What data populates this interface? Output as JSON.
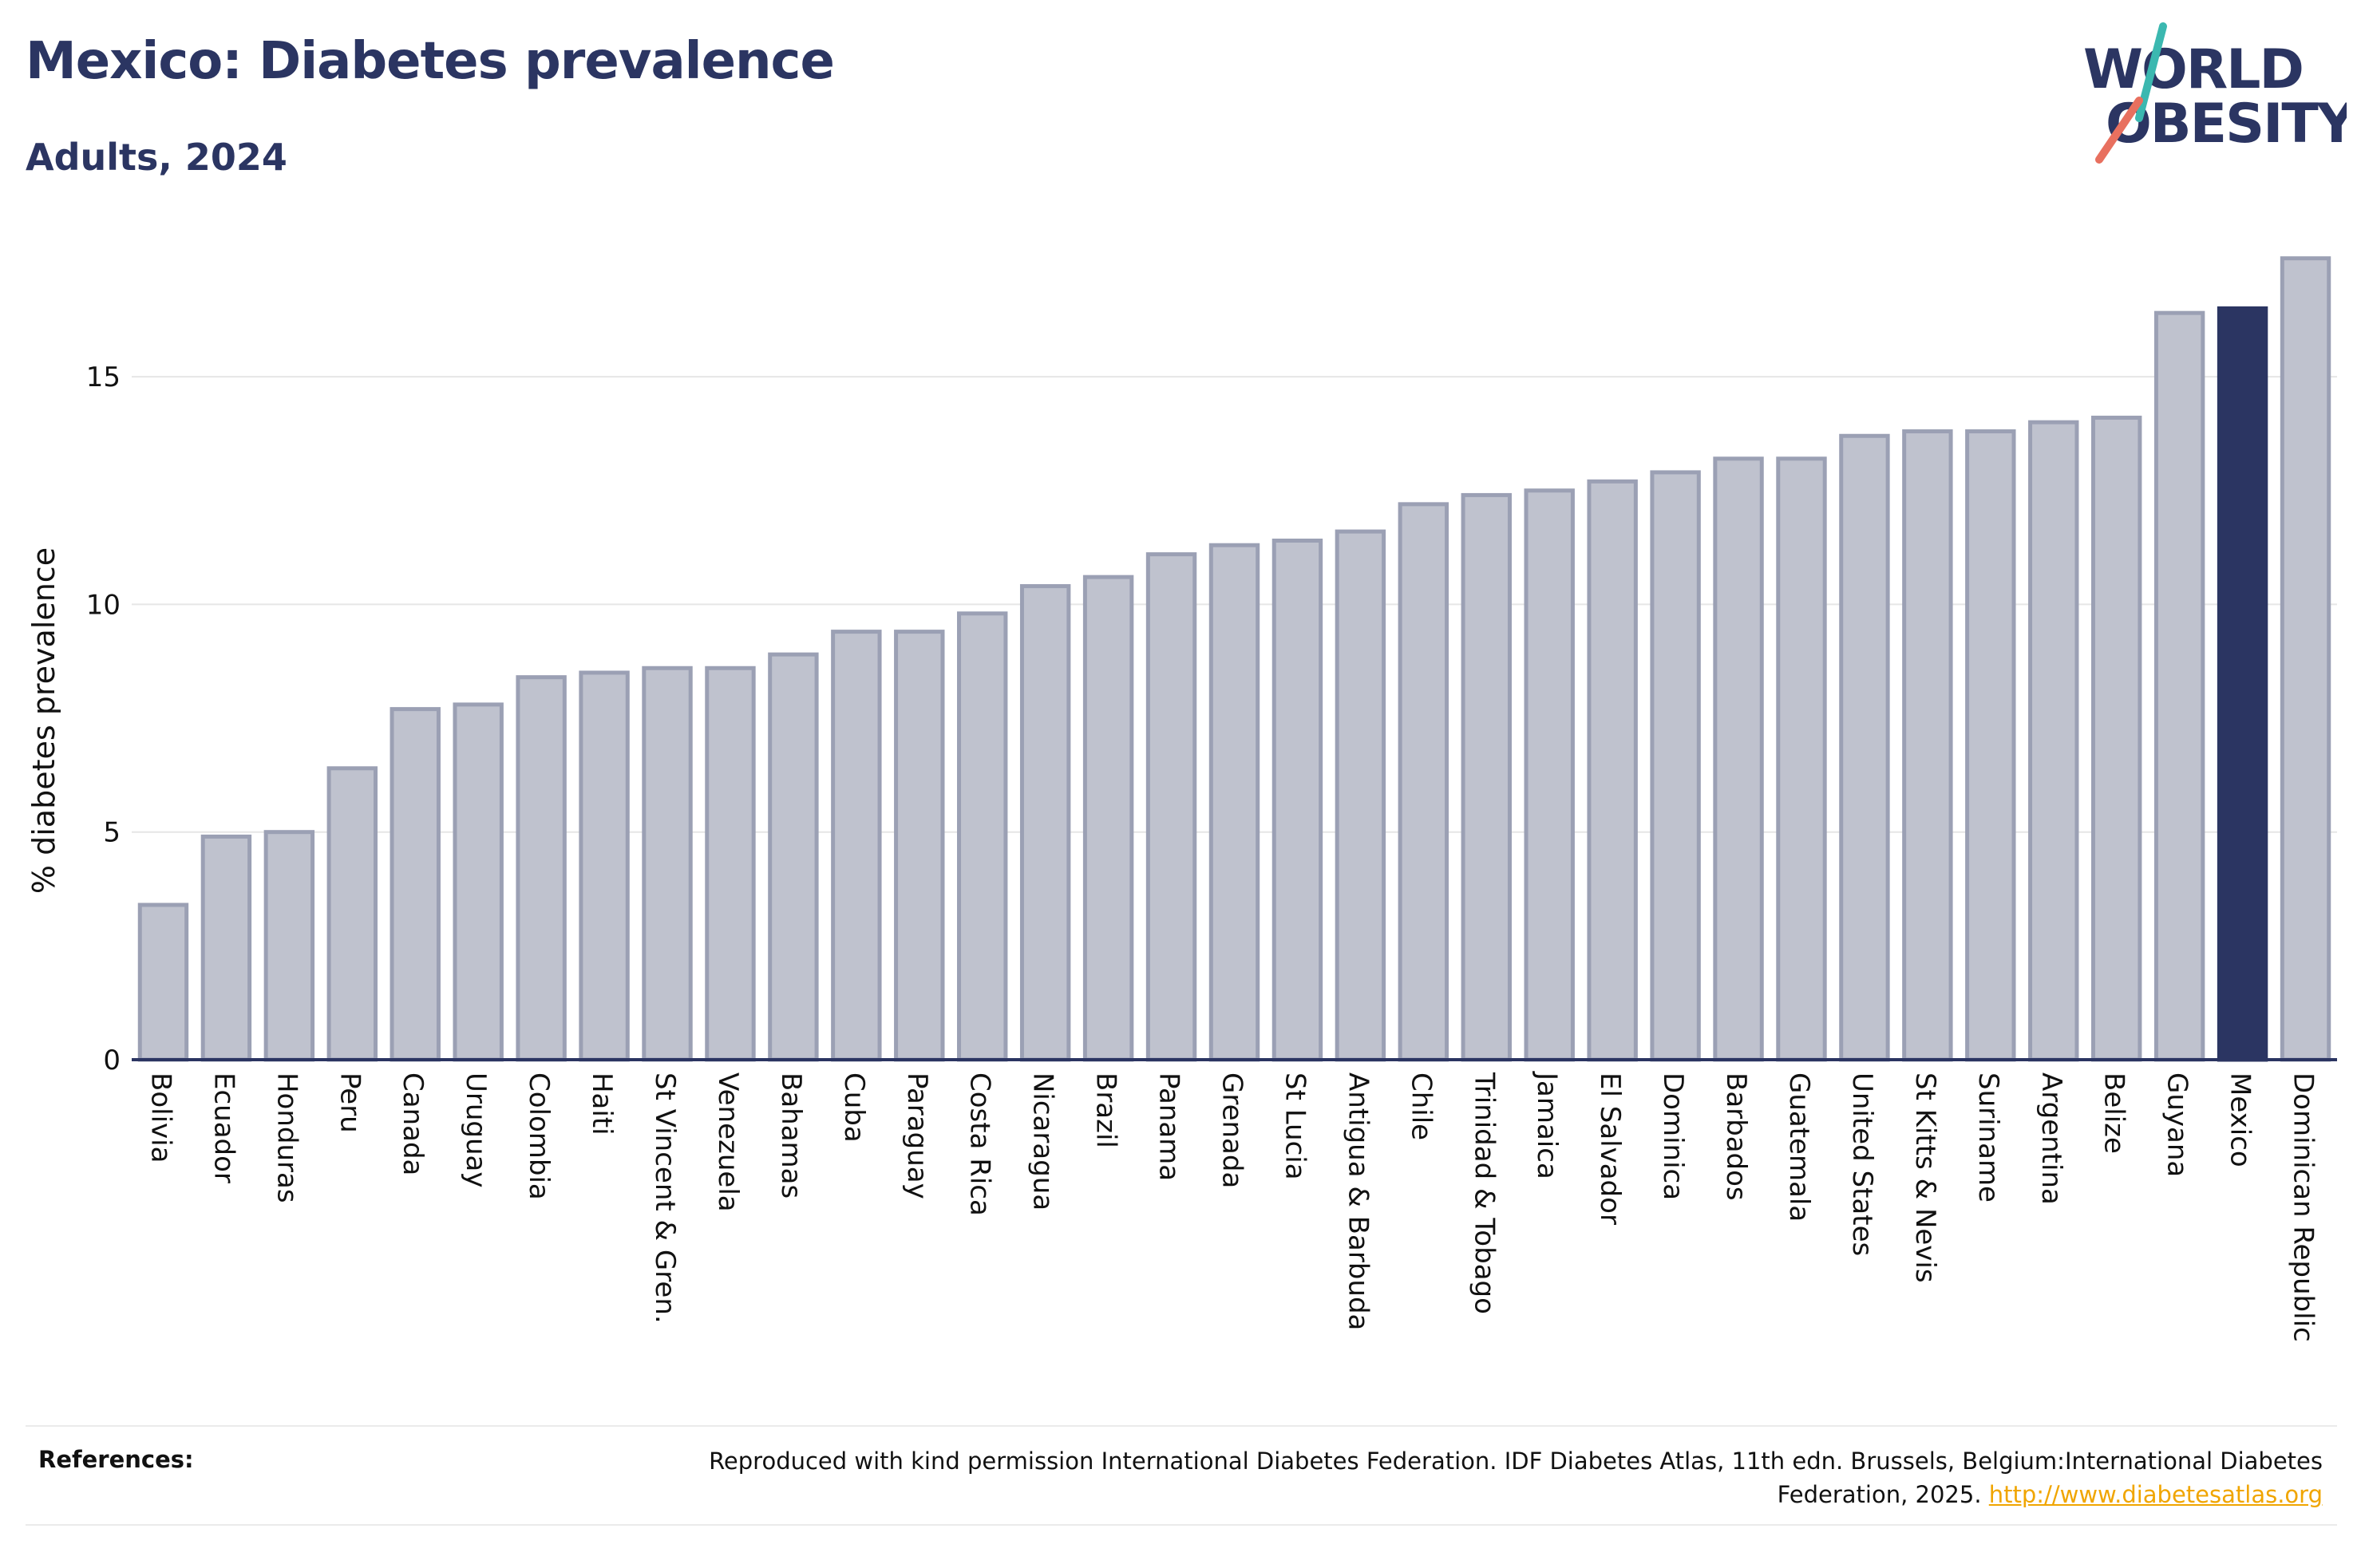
{
  "header": {
    "title": "Mexico: Diabetes prevalence",
    "subtitle": "Adults, 2024"
  },
  "logo": {
    "line1": "WORLD",
    "line2": "OBESITY"
  },
  "colors": {
    "title": "#2b3562",
    "bar": "#bfc2ce",
    "bar_outline": "#9ba0b4",
    "highlight": "#2b3562",
    "grid": "#e6e6e6",
    "axis_line": "#2b3562",
    "logo_text": "#2b3562",
    "logo_teal": "#3bb8b0",
    "logo_coral": "#e8705f",
    "link": "#f0a500"
  },
  "chart_data": {
    "type": "bar",
    "title": "Mexico: Diabetes prevalence",
    "subtitle": "Adults, 2024",
    "xlabel": "",
    "ylabel": "% diabetes prevalence",
    "ylim": [
      0,
      17.7
    ],
    "yticks": [
      0,
      5,
      10,
      15
    ],
    "grid": true,
    "highlight": "Mexico",
    "categories": [
      "Bolivia",
      "Ecuador",
      "Honduras",
      "Peru",
      "Canada",
      "Uruguay",
      "Colombia",
      "Haiti",
      "St Vincent & Gren.",
      "Venezuela",
      "Bahamas",
      "Cuba",
      "Paraguay",
      "Costa Rica",
      "Nicaragua",
      "Brazil",
      "Panama",
      "Grenada",
      "St Lucia",
      "Antigua & Barbuda",
      "Chile",
      "Trinidad & Tobago",
      "Jamaica",
      "El Salvador",
      "Dominica",
      "Barbados",
      "Guatemala",
      "United States",
      "St Kitts & Nevis",
      "Suriname",
      "Argentina",
      "Belize",
      "Guyana",
      "Mexico",
      "Dominican Republic"
    ],
    "values": [
      3.4,
      4.9,
      5.0,
      6.4,
      7.7,
      7.8,
      8.4,
      8.5,
      8.6,
      8.6,
      8.9,
      9.4,
      9.4,
      9.8,
      10.4,
      10.6,
      11.1,
      11.3,
      11.4,
      11.6,
      12.2,
      12.4,
      12.5,
      12.7,
      12.9,
      13.2,
      13.2,
      13.7,
      13.8,
      13.8,
      14.0,
      14.1,
      16.4,
      16.5,
      17.6
    ]
  },
  "references": {
    "label": "References:",
    "text": "Reproduced with kind permission International Diabetes Federation. IDF Diabetes Atlas, 11th edn. Brussels, Belgium:International Diabetes Federation, 2025.",
    "link": "http://www.diabetesatlas.org"
  }
}
